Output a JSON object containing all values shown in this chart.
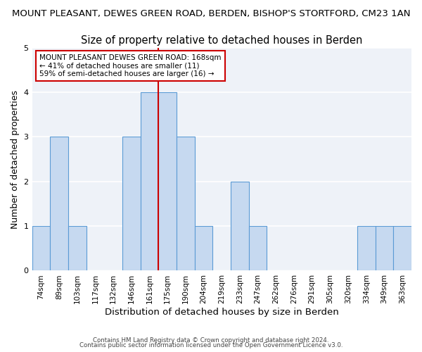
{
  "title_main": "MOUNT PLEASANT, DEWES GREEN ROAD, BERDEN, BISHOP'S STORTFORD, CM23 1AN",
  "title_sub": "Size of property relative to detached houses in Berden",
  "xlabel": "Distribution of detached houses by size in Berden",
  "ylabel": "Number of detached properties",
  "bar_labels": [
    "74sqm",
    "89sqm",
    "103sqm",
    "117sqm",
    "132sqm",
    "146sqm",
    "161sqm",
    "175sqm",
    "190sqm",
    "204sqm",
    "219sqm",
    "233sqm",
    "247sqm",
    "262sqm",
    "276sqm",
    "291sqm",
    "305sqm",
    "320sqm",
    "334sqm",
    "349sqm",
    "363sqm"
  ],
  "bar_values": [
    1,
    3,
    1,
    0,
    0,
    3,
    4,
    4,
    3,
    1,
    0,
    2,
    1,
    0,
    0,
    0,
    0,
    0,
    1,
    1,
    1
  ],
  "bar_color": "#c6d9f0",
  "bar_edge_color": "#5b9bd5",
  "vline_x_index": 6.5,
  "vline_color": "#cc0000",
  "annotation_text": "MOUNT PLEASANT DEWES GREEN ROAD: 168sqm\n← 41% of detached houses are smaller (11)\n59% of semi-detached houses are larger (16) →",
  "annotation_box_color": "#ffffff",
  "annotation_box_edge_color": "#cc0000",
  "ylim": [
    0,
    5
  ],
  "yticks": [
    0,
    1,
    2,
    3,
    4,
    5
  ],
  "background_color": "#ffffff",
  "plot_background": "#eef2f8",
  "footer_line1": "Contains HM Land Registry data © Crown copyright and database right 2024.",
  "footer_line2": "Contains public sector information licensed under the Open Government Licence v3.0.",
  "title_main_fontsize": 9.5,
  "title_sub_fontsize": 10.5,
  "xlabel_fontsize": 9.5,
  "ylabel_fontsize": 9,
  "grid_color": "#ffffff",
  "tick_label_fontsize": 7.5,
  "footer_fontsize": 6.2
}
